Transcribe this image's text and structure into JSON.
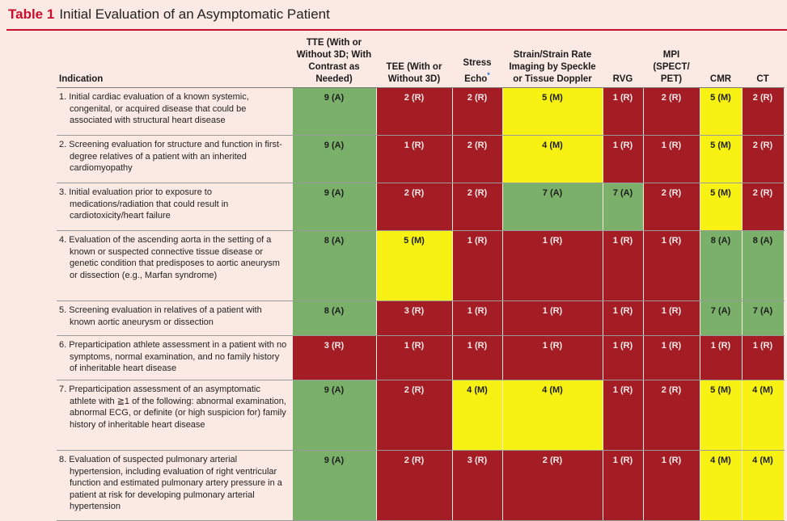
{
  "title": {
    "number": "Table 1",
    "text": "Initial Evaluation of an Asymptomatic Patient"
  },
  "headers": {
    "indication": "Indication",
    "cols": [
      "TTE (With or Without 3D; With Contrast as Needed)",
      "TEE (With or Without 3D)",
      "Stress Echo",
      "Strain/Strain Rate Imaging by Speckle or Tissue Doppler",
      "RVG",
      "MPI (SPECT/ PET)",
      "CMR",
      "CT"
    ],
    "stress_marker": "*"
  },
  "colors": {
    "appropriate": "#7ab06a",
    "maybe": "#f7f213",
    "rarely": "#a51d24"
  },
  "rows": [
    {
      "indication": "1. Initial cardiac evaluation of a known systemic, congenital, or acquired disease that could be associated with structural heart disease",
      "cells": [
        [
          "9 (A)",
          "A"
        ],
        [
          "2 (R)",
          "R"
        ],
        [
          "2 (R)",
          "R"
        ],
        [
          "5 (M)",
          "M"
        ],
        [
          "1 (R)",
          "R"
        ],
        [
          "2 (R)",
          "R"
        ],
        [
          "5 (M)",
          "M"
        ],
        [
          "2 (R)",
          "R"
        ]
      ]
    },
    {
      "indication": "2. Screening evaluation for structure and function in first-degree relatives of a patient with an inherited cardiomyopathy",
      "cells": [
        [
          "9 (A)",
          "A"
        ],
        [
          "1 (R)",
          "R"
        ],
        [
          "2 (R)",
          "R"
        ],
        [
          "4 (M)",
          "M"
        ],
        [
          "1 (R)",
          "R"
        ],
        [
          "1 (R)",
          "R"
        ],
        [
          "5 (M)",
          "M"
        ],
        [
          "2 (R)",
          "R"
        ]
      ]
    },
    {
      "indication": "3. Initial evaluation prior to exposure to medications/radiation that could result in cardiotoxicity/heart failure",
      "cells": [
        [
          "9 (A)",
          "A"
        ],
        [
          "2 (R)",
          "R"
        ],
        [
          "2 (R)",
          "R"
        ],
        [
          "7 (A)",
          "A"
        ],
        [
          "7 (A)",
          "A"
        ],
        [
          "2 (R)",
          "R"
        ],
        [
          "5 (M)",
          "M"
        ],
        [
          "2 (R)",
          "R"
        ]
      ]
    },
    {
      "indication": "4. Evaluation of the ascending aorta in the setting of a known or suspected connective tissue disease or genetic condition that predisposes to aortic aneurysm or dissection (e.g., Marfan syndrome)",
      "cells": [
        [
          "8 (A)",
          "A"
        ],
        [
          "5 (M)",
          "M"
        ],
        [
          "1 (R)",
          "R"
        ],
        [
          "1 (R)",
          "R"
        ],
        [
          "1 (R)",
          "R"
        ],
        [
          "1 (R)",
          "R"
        ],
        [
          "8 (A)",
          "A"
        ],
        [
          "8 (A)",
          "A"
        ]
      ]
    },
    {
      "indication": "5. Screening evaluation in relatives of a patient with known aortic aneurysm or dissection",
      "cells": [
        [
          "8 (A)",
          "A"
        ],
        [
          "3 (R)",
          "R"
        ],
        [
          "1 (R)",
          "R"
        ],
        [
          "1 (R)",
          "R"
        ],
        [
          "1 (R)",
          "R"
        ],
        [
          "1 (R)",
          "R"
        ],
        [
          "7 (A)",
          "A"
        ],
        [
          "7 (A)",
          "A"
        ]
      ]
    },
    {
      "indication": "6. Preparticipation athlete assessment in a patient with no symptoms, normal examination, and no family history of inheritable heart disease",
      "cells": [
        [
          "3 (R)",
          "R"
        ],
        [
          "1 (R)",
          "R"
        ],
        [
          "1 (R)",
          "R"
        ],
        [
          "1 (R)",
          "R"
        ],
        [
          "1 (R)",
          "R"
        ],
        [
          "1 (R)",
          "R"
        ],
        [
          "1 (R)",
          "R"
        ],
        [
          "1 (R)",
          "R"
        ]
      ]
    },
    {
      "indication": "7. Preparticipation assessment of an asymptomatic athlete with ≧1 of the following: abnormal examination, abnormal ECG, or definite (or high suspicion for) family history of inheritable heart disease",
      "cells": [
        [
          "9 (A)",
          "A"
        ],
        [
          "2 (R)",
          "R"
        ],
        [
          "4 (M)",
          "M"
        ],
        [
          "4 (M)",
          "M"
        ],
        [
          "1 (R)",
          "R"
        ],
        [
          "2 (R)",
          "R"
        ],
        [
          "5 (M)",
          "M"
        ],
        [
          "4 (M)",
          "M"
        ]
      ]
    },
    {
      "indication": "8. Evaluation of suspected pulmonary arterial hypertension, including evaluation of right ventricular function and estimated pulmonary artery pressure in a patient at risk for developing pulmonary arterial hypertension",
      "cells": [
        [
          "9 (A)",
          "A"
        ],
        [
          "2 (R)",
          "R"
        ],
        [
          "3 (R)",
          "R"
        ],
        [
          "2 (R)",
          "R"
        ],
        [
          "1 (R)",
          "R"
        ],
        [
          "1 (R)",
          "R"
        ],
        [
          "4 (M)",
          "M"
        ],
        [
          "4 (M)",
          "M"
        ]
      ]
    }
  ]
}
